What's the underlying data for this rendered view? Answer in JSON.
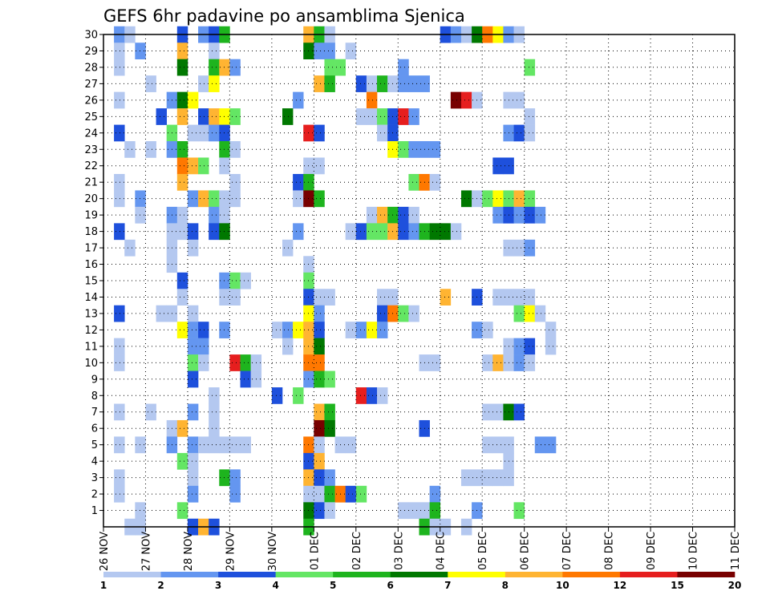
{
  "chart_data": {
    "type": "heatmap",
    "title": "GEFS 6hr padavine po ansamblima Sjenica",
    "xlabel": "",
    "ylabel": "",
    "x_tick_labels": [
      "26 NOV",
      "27 NOV",
      "28 NOV",
      "29 NOV",
      "30 NOV",
      "01 DEC",
      "02 DEC",
      "03 DEC",
      "04 DEC",
      "05 DEC",
      "06 DEC",
      "07 DEC",
      "08 DEC",
      "09 DEC",
      "10 DEC",
      "11 DEC"
    ],
    "y_tick_labels": [
      "1",
      "2",
      "3",
      "4",
      "5",
      "6",
      "7",
      "8",
      "9",
      "10",
      "11",
      "12",
      "13",
      "14",
      "15",
      "16",
      "17",
      "18",
      "19",
      "20",
      "21",
      "22",
      "23",
      "24",
      "25",
      "26",
      "27",
      "28",
      "29",
      "30"
    ],
    "x_range_days": [
      0,
      15
    ],
    "time_step_hours": 6,
    "y_range": [
      0,
      30
    ],
    "grid": "dotted",
    "colorbar": {
      "position": "bottom",
      "colors": [
        "#b4c8f0",
        "#6496f0",
        "#1e50dc",
        "#64e664",
        "#1eb41e",
        "#007800",
        "#ffff00",
        "#ffb432",
        "#ff7800",
        "#e61e1e",
        "#780000"
      ],
      "labels": [
        "1",
        "2",
        "3",
        "4",
        "5",
        "6",
        "7",
        "8",
        "10",
        "12",
        "15",
        "20"
      ]
    },
    "cells": [
      [
        1,
        30,
        2
      ],
      [
        2,
        30,
        1
      ],
      [
        7,
        30,
        3
      ],
      [
        9,
        30,
        2
      ],
      [
        10,
        30,
        3
      ],
      [
        11,
        30,
        5
      ],
      [
        19,
        30,
        8
      ],
      [
        20,
        30,
        5
      ],
      [
        21,
        30,
        1
      ],
      [
        32,
        30,
        3
      ],
      [
        33,
        30,
        2
      ],
      [
        34,
        30,
        1
      ],
      [
        35,
        30,
        6
      ],
      [
        36,
        30,
        9
      ],
      [
        37,
        30,
        7
      ],
      [
        38,
        30,
        2
      ],
      [
        39,
        30,
        1
      ],
      [
        1,
        29,
        1
      ],
      [
        3,
        29,
        2
      ],
      [
        7,
        29,
        8
      ],
      [
        10,
        29,
        1
      ],
      [
        19,
        29,
        6
      ],
      [
        20,
        29,
        2
      ],
      [
        21,
        29,
        2
      ],
      [
        23,
        29,
        1
      ],
      [
        1,
        28,
        1
      ],
      [
        7,
        28,
        6
      ],
      [
        10,
        28,
        5
      ],
      [
        11,
        28,
        8
      ],
      [
        12,
        28,
        2
      ],
      [
        21,
        28,
        4
      ],
      [
        22,
        28,
        4
      ],
      [
        28,
        28,
        2
      ],
      [
        40,
        28,
        4
      ],
      [
        4,
        27,
        1
      ],
      [
        9,
        27,
        1
      ],
      [
        10,
        27,
        7
      ],
      [
        20,
        27,
        8
      ],
      [
        21,
        27,
        5
      ],
      [
        24,
        27,
        3
      ],
      [
        25,
        27,
        1
      ],
      [
        26,
        27,
        5
      ],
      [
        27,
        27,
        1
      ],
      [
        28,
        27,
        2
      ],
      [
        29,
        27,
        2
      ],
      [
        30,
        27,
        2
      ],
      [
        1,
        26,
        1
      ],
      [
        6,
        26,
        2
      ],
      [
        7,
        26,
        6
      ],
      [
        8,
        26,
        7
      ],
      [
        18,
        26,
        2
      ],
      [
        25,
        26,
        9
      ],
      [
        33,
        26,
        11
      ],
      [
        34,
        26,
        10
      ],
      [
        35,
        26,
        1
      ],
      [
        38,
        26,
        1
      ],
      [
        39,
        26,
        1
      ],
      [
        5,
        25,
        3
      ],
      [
        7,
        25,
        8
      ],
      [
        9,
        25,
        3
      ],
      [
        10,
        25,
        8
      ],
      [
        11,
        25,
        7
      ],
      [
        12,
        25,
        4
      ],
      [
        17,
        25,
        6
      ],
      [
        24,
        25,
        1
      ],
      [
        25,
        25,
        1
      ],
      [
        26,
        25,
        4
      ],
      [
        27,
        25,
        3
      ],
      [
        28,
        25,
        10
      ],
      [
        29,
        25,
        2
      ],
      [
        40,
        25,
        1
      ],
      [
        1,
        24,
        3
      ],
      [
        6,
        24,
        4
      ],
      [
        8,
        24,
        1
      ],
      [
        9,
        24,
        1
      ],
      [
        10,
        24,
        2
      ],
      [
        11,
        24,
        3
      ],
      [
        19,
        24,
        10
      ],
      [
        20,
        24,
        3
      ],
      [
        26,
        24,
        1
      ],
      [
        27,
        24,
        3
      ],
      [
        38,
        24,
        2
      ],
      [
        39,
        24,
        3
      ],
      [
        40,
        24,
        1
      ],
      [
        2,
        23,
        1
      ],
      [
        4,
        23,
        1
      ],
      [
        6,
        23,
        2
      ],
      [
        7,
        23,
        5
      ],
      [
        11,
        23,
        5
      ],
      [
        12,
        23,
        1
      ],
      [
        27,
        23,
        7
      ],
      [
        28,
        23,
        4
      ],
      [
        29,
        23,
        2
      ],
      [
        30,
        23,
        2
      ],
      [
        31,
        23,
        2
      ],
      [
        7,
        22,
        9
      ],
      [
        8,
        22,
        8
      ],
      [
        9,
        22,
        4
      ],
      [
        11,
        22,
        1
      ],
      [
        19,
        22,
        1
      ],
      [
        20,
        22,
        1
      ],
      [
        37,
        22,
        3
      ],
      [
        38,
        22,
        3
      ],
      [
        1,
        21,
        1
      ],
      [
        7,
        21,
        8
      ],
      [
        12,
        21,
        1
      ],
      [
        18,
        21,
        3
      ],
      [
        19,
        21,
        5
      ],
      [
        29,
        21,
        4
      ],
      [
        30,
        21,
        9
      ],
      [
        31,
        21,
        1
      ],
      [
        1,
        20,
        1
      ],
      [
        3,
        20,
        2
      ],
      [
        8,
        20,
        2
      ],
      [
        9,
        20,
        8
      ],
      [
        10,
        20,
        4
      ],
      [
        11,
        20,
        1
      ],
      [
        12,
        20,
        1
      ],
      [
        18,
        20,
        1
      ],
      [
        19,
        20,
        11
      ],
      [
        20,
        20,
        5
      ],
      [
        34,
        20,
        6
      ],
      [
        35,
        20,
        1
      ],
      [
        36,
        20,
        4
      ],
      [
        37,
        20,
        7
      ],
      [
        38,
        20,
        4
      ],
      [
        39,
        20,
        8
      ],
      [
        40,
        20,
        4
      ],
      [
        3,
        19,
        1
      ],
      [
        6,
        19,
        2
      ],
      [
        7,
        19,
        1
      ],
      [
        10,
        19,
        2
      ],
      [
        11,
        19,
        1
      ],
      [
        25,
        19,
        1
      ],
      [
        26,
        19,
        8
      ],
      [
        27,
        19,
        5
      ],
      [
        28,
        19,
        3
      ],
      [
        29,
        19,
        1
      ],
      [
        37,
        19,
        2
      ],
      [
        38,
        19,
        3
      ],
      [
        39,
        19,
        2
      ],
      [
        40,
        19,
        3
      ],
      [
        41,
        19,
        2
      ],
      [
        1,
        18,
        3
      ],
      [
        6,
        18,
        1
      ],
      [
        7,
        18,
        1
      ],
      [
        8,
        18,
        3
      ],
      [
        10,
        18,
        3
      ],
      [
        11,
        18,
        6
      ],
      [
        18,
        18,
        2
      ],
      [
        23,
        18,
        1
      ],
      [
        24,
        18,
        3
      ],
      [
        25,
        18,
        4
      ],
      [
        26,
        18,
        4
      ],
      [
        27,
        18,
        8
      ],
      [
        28,
        18,
        3
      ],
      [
        29,
        18,
        2
      ],
      [
        30,
        18,
        5
      ],
      [
        31,
        18,
        6
      ],
      [
        32,
        18,
        6
      ],
      [
        33,
        18,
        1
      ],
      [
        2,
        17,
        1
      ],
      [
        6,
        17,
        1
      ],
      [
        8,
        17,
        1
      ],
      [
        17,
        17,
        1
      ],
      [
        38,
        17,
        1
      ],
      [
        39,
        17,
        1
      ],
      [
        40,
        17,
        2
      ],
      [
        6,
        16,
        1
      ],
      [
        19,
        16,
        1
      ],
      [
        7,
        15,
        3
      ],
      [
        11,
        15,
        2
      ],
      [
        12,
        15,
        4
      ],
      [
        13,
        15,
        1
      ],
      [
        19,
        15,
        4
      ],
      [
        7,
        14,
        1
      ],
      [
        11,
        14,
        1
      ],
      [
        12,
        14,
        1
      ],
      [
        19,
        14,
        3
      ],
      [
        20,
        14,
        1
      ],
      [
        21,
        14,
        1
      ],
      [
        26,
        14,
        1
      ],
      [
        27,
        14,
        1
      ],
      [
        32,
        14,
        8
      ],
      [
        35,
        14,
        3
      ],
      [
        37,
        14,
        1
      ],
      [
        38,
        14,
        1
      ],
      [
        39,
        14,
        1
      ],
      [
        40,
        14,
        1
      ],
      [
        1,
        13,
        3
      ],
      [
        5,
        13,
        1
      ],
      [
        6,
        13,
        1
      ],
      [
        8,
        13,
        1
      ],
      [
        19,
        13,
        7
      ],
      [
        20,
        13,
        2
      ],
      [
        26,
        13,
        3
      ],
      [
        27,
        13,
        9
      ],
      [
        28,
        13,
        4
      ],
      [
        29,
        13,
        1
      ],
      [
        39,
        13,
        4
      ],
      [
        40,
        13,
        7
      ],
      [
        41,
        13,
        1
      ],
      [
        7,
        12,
        7
      ],
      [
        8,
        12,
        2
      ],
      [
        9,
        12,
        3
      ],
      [
        11,
        12,
        2
      ],
      [
        16,
        12,
        1
      ],
      [
        17,
        12,
        2
      ],
      [
        18,
        12,
        7
      ],
      [
        19,
        12,
        8
      ],
      [
        20,
        12,
        3
      ],
      [
        23,
        12,
        1
      ],
      [
        24,
        12,
        2
      ],
      [
        25,
        12,
        7
      ],
      [
        26,
        12,
        2
      ],
      [
        35,
        12,
        2
      ],
      [
        36,
        12,
        1
      ],
      [
        42,
        12,
        1
      ],
      [
        1,
        11,
        1
      ],
      [
        8,
        11,
        2
      ],
      [
        9,
        11,
        2
      ],
      [
        17,
        11,
        1
      ],
      [
        19,
        11,
        8
      ],
      [
        20,
        11,
        6
      ],
      [
        38,
        11,
        1
      ],
      [
        39,
        11,
        2
      ],
      [
        40,
        11,
        3
      ],
      [
        42,
        11,
        1
      ],
      [
        1,
        10,
        1
      ],
      [
        8,
        10,
        4
      ],
      [
        9,
        10,
        1
      ],
      [
        12,
        10,
        10
      ],
      [
        13,
        10,
        5
      ],
      [
        14,
        10,
        1
      ],
      [
        19,
        10,
        9
      ],
      [
        20,
        10,
        9
      ],
      [
        30,
        10,
        1
      ],
      [
        31,
        10,
        1
      ],
      [
        36,
        10,
        1
      ],
      [
        37,
        10,
        8
      ],
      [
        38,
        10,
        1
      ],
      [
        39,
        10,
        2
      ],
      [
        40,
        10,
        1
      ],
      [
        8,
        9,
        3
      ],
      [
        13,
        9,
        3
      ],
      [
        14,
        9,
        1
      ],
      [
        19,
        9,
        2
      ],
      [
        20,
        9,
        5
      ],
      [
        21,
        9,
        4
      ],
      [
        10,
        8,
        1
      ],
      [
        16,
        8,
        3
      ],
      [
        18,
        8,
        4
      ],
      [
        24,
        8,
        10
      ],
      [
        25,
        8,
        3
      ],
      [
        26,
        8,
        1
      ],
      [
        1,
        7,
        1
      ],
      [
        4,
        7,
        1
      ],
      [
        8,
        7,
        2
      ],
      [
        10,
        7,
        1
      ],
      [
        20,
        7,
        8
      ],
      [
        21,
        7,
        5
      ],
      [
        36,
        7,
        1
      ],
      [
        37,
        7,
        1
      ],
      [
        38,
        7,
        6
      ],
      [
        39,
        7,
        3
      ],
      [
        6,
        6,
        1
      ],
      [
        7,
        6,
        8
      ],
      [
        10,
        6,
        1
      ],
      [
        20,
        6,
        11
      ],
      [
        21,
        6,
        6
      ],
      [
        30,
        6,
        3
      ],
      [
        1,
        5,
        1
      ],
      [
        3,
        5,
        1
      ],
      [
        6,
        5,
        2
      ],
      [
        8,
        5,
        2
      ],
      [
        9,
        5,
        1
      ],
      [
        10,
        5,
        1
      ],
      [
        11,
        5,
        1
      ],
      [
        12,
        5,
        1
      ],
      [
        13,
        5,
        1
      ],
      [
        19,
        5,
        9
      ],
      [
        20,
        5,
        1
      ],
      [
        22,
        5,
        1
      ],
      [
        23,
        5,
        1
      ],
      [
        36,
        5,
        1
      ],
      [
        37,
        5,
        1
      ],
      [
        38,
        5,
        1
      ],
      [
        41,
        5,
        2
      ],
      [
        42,
        5,
        2
      ],
      [
        7,
        4,
        4
      ],
      [
        8,
        4,
        1
      ],
      [
        19,
        4,
        3
      ],
      [
        20,
        4,
        8
      ],
      [
        38,
        4,
        1
      ],
      [
        1,
        3,
        1
      ],
      [
        8,
        3,
        1
      ],
      [
        11,
        3,
        5
      ],
      [
        12,
        3,
        2
      ],
      [
        19,
        3,
        8
      ],
      [
        20,
        3,
        3
      ],
      [
        21,
        3,
        2
      ],
      [
        34,
        3,
        1
      ],
      [
        35,
        3,
        1
      ],
      [
        36,
        3,
        1
      ],
      [
        37,
        3,
        1
      ],
      [
        38,
        3,
        1
      ],
      [
        1,
        2,
        1
      ],
      [
        8,
        2,
        2
      ],
      [
        12,
        2,
        2
      ],
      [
        19,
        2,
        1
      ],
      [
        20,
        2,
        1
      ],
      [
        21,
        2,
        5
      ],
      [
        22,
        2,
        9
      ],
      [
        23,
        2,
        3
      ],
      [
        24,
        2,
        4
      ],
      [
        31,
        2,
        2
      ],
      [
        3,
        1,
        1
      ],
      [
        7,
        1,
        4
      ],
      [
        19,
        1,
        6
      ],
      [
        20,
        1,
        3
      ],
      [
        21,
        1,
        1
      ],
      [
        28,
        1,
        1
      ],
      [
        29,
        1,
        1
      ],
      [
        30,
        1,
        1
      ],
      [
        31,
        1,
        5
      ],
      [
        35,
        1,
        2
      ],
      [
        39,
        1,
        4
      ],
      [
        2,
        0,
        1
      ],
      [
        3,
        0,
        1
      ],
      [
        8,
        0,
        3
      ],
      [
        9,
        0,
        8
      ],
      [
        10,
        0,
        3
      ],
      [
        19,
        0,
        5
      ],
      [
        30,
        0,
        5
      ],
      [
        31,
        0,
        1
      ],
      [
        32,
        0,
        1
      ],
      [
        34,
        0,
        1
      ]
    ]
  }
}
